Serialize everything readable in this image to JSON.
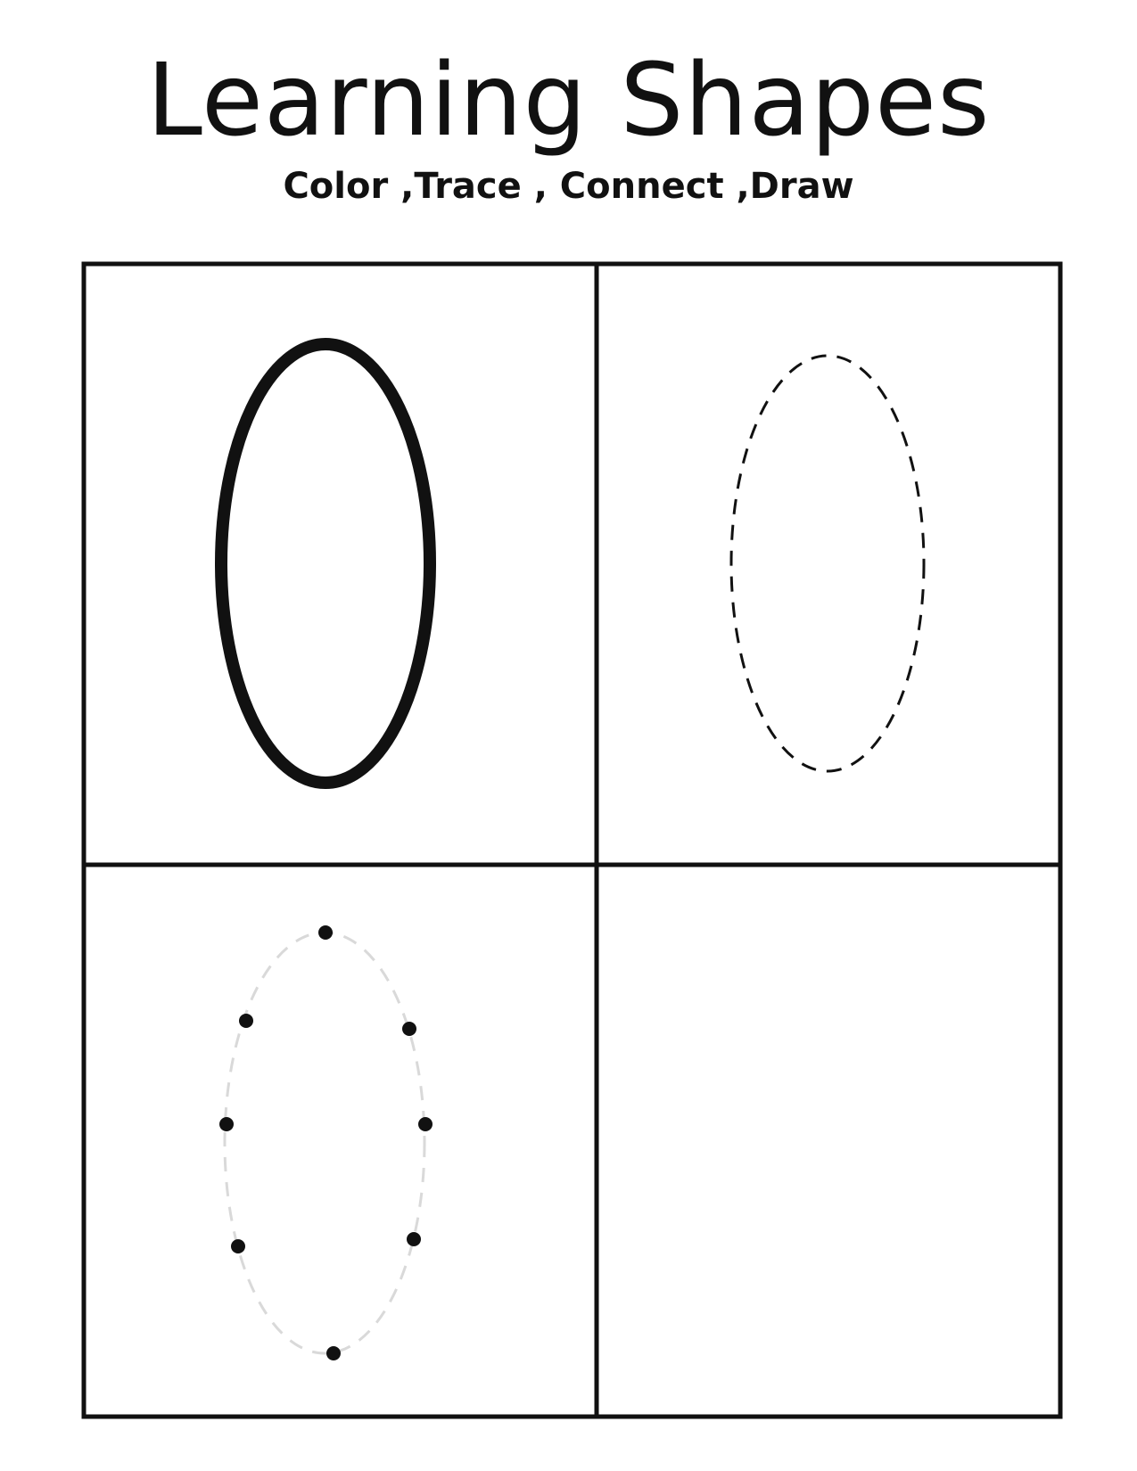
{
  "worksheet": {
    "title": "Learning Shapes",
    "subtitle": "Color ,Trace , Connect ,Draw",
    "shape": "oval",
    "panels": [
      {
        "activity": "color",
        "style": "solid-outline"
      },
      {
        "activity": "trace",
        "style": "dashed-outline"
      },
      {
        "activity": "connect",
        "style": "dots",
        "dot_count": 8
      },
      {
        "activity": "draw",
        "style": "blank"
      }
    ]
  },
  "colors": {
    "ink": "#111111",
    "guide": "#d9d9d9",
    "paper": "#ffffff"
  }
}
